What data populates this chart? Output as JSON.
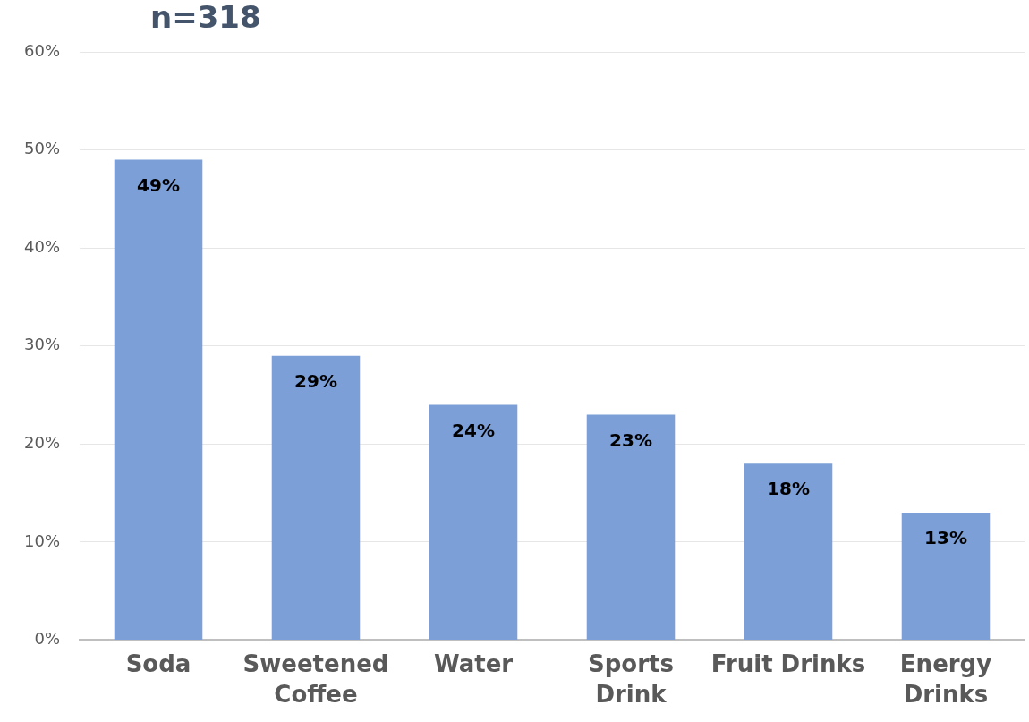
{
  "chart_data": {
    "type": "bar",
    "title": "n=318",
    "categories": [
      "Soda",
      "Sweetened Coffee",
      "Water",
      "Sports Drink",
      "Fruit Drinks",
      "Energy Drinks"
    ],
    "values": [
      49,
      29,
      24,
      23,
      18,
      13
    ],
    "value_labels": [
      "49%",
      "29%",
      "24%",
      "23%",
      "18%",
      "13%"
    ],
    "color": "#7b9fd6",
    "ylim": [
      0,
      60
    ],
    "yticks": [
      {
        "value": 0,
        "label": "0%"
      },
      {
        "value": 10,
        "label": "10%"
      },
      {
        "value": 20,
        "label": "20%"
      },
      {
        "value": 30,
        "label": "30%"
      },
      {
        "value": 40,
        "label": "40%"
      },
      {
        "value": 50,
        "label": "50%"
      },
      {
        "value": 60,
        "label": "60%"
      }
    ],
    "grid": "y",
    "legend": false
  }
}
